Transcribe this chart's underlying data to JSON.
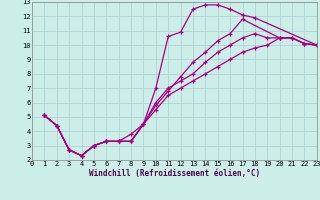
{
  "background_color": "#cceee8",
  "grid_color": "#aacccc",
  "line_color": "#aa0088",
  "marker": "+",
  "markersize": 3.5,
  "linewidth": 0.9,
  "xlim": [
    0,
    23
  ],
  "ylim": [
    2,
    13
  ],
  "xticks": [
    0,
    1,
    2,
    3,
    4,
    5,
    6,
    7,
    8,
    9,
    10,
    11,
    12,
    13,
    14,
    15,
    16,
    17,
    18,
    19,
    20,
    21,
    22,
    23
  ],
  "yticks": [
    2,
    3,
    4,
    5,
    6,
    7,
    8,
    9,
    10,
    11,
    12,
    13
  ],
  "xlabel": "Windchill (Refroidissement éolien,°C)",
  "xlabel_fontsize": 5.5,
  "tick_fontsize": 5.0,
  "lines": [
    {
      "x": [
        1,
        2,
        3,
        4,
        5,
        6,
        7,
        8,
        9,
        10,
        11,
        12,
        13,
        14,
        15,
        16,
        17,
        18,
        23
      ],
      "y": [
        5.1,
        4.4,
        2.7,
        2.3,
        3.0,
        3.3,
        3.3,
        3.3,
        4.5,
        7.0,
        10.6,
        10.9,
        12.5,
        12.8,
        12.8,
        12.5,
        12.1,
        11.9,
        10.0
      ]
    },
    {
      "x": [
        1,
        2,
        3,
        4,
        5,
        6,
        7,
        8,
        9,
        10,
        11,
        12,
        13,
        14,
        15,
        16,
        17,
        20,
        21,
        22,
        23
      ],
      "y": [
        5.1,
        4.4,
        2.7,
        2.3,
        3.0,
        3.3,
        3.3,
        3.3,
        4.5,
        5.8,
        6.8,
        7.8,
        8.8,
        9.5,
        10.3,
        10.8,
        11.8,
        10.5,
        10.5,
        10.1,
        10.0
      ]
    },
    {
      "x": [
        1,
        2,
        3,
        4,
        5,
        6,
        7,
        8,
        9,
        10,
        11,
        12,
        13,
        14,
        15,
        16,
        17,
        18,
        19,
        20,
        21,
        22,
        23
      ],
      "y": [
        5.1,
        4.4,
        2.7,
        2.3,
        3.0,
        3.3,
        3.3,
        3.3,
        4.5,
        5.5,
        6.5,
        7.0,
        7.5,
        8.0,
        8.5,
        9.0,
        9.5,
        9.8,
        10.0,
        10.5,
        10.5,
        10.1,
        10.0
      ]
    },
    {
      "x": [
        1,
        2,
        3,
        4,
        5,
        6,
        7,
        8,
        9,
        10,
        11,
        12,
        13,
        14,
        15,
        16,
        17,
        18,
        19,
        20,
        21,
        22,
        23
      ],
      "y": [
        5.1,
        4.4,
        2.7,
        2.3,
        3.0,
        3.3,
        3.3,
        3.8,
        4.5,
        6.0,
        7.0,
        7.5,
        8.0,
        8.8,
        9.5,
        10.0,
        10.5,
        10.8,
        10.5,
        10.5,
        10.5,
        10.1,
        10.0
      ]
    }
  ]
}
